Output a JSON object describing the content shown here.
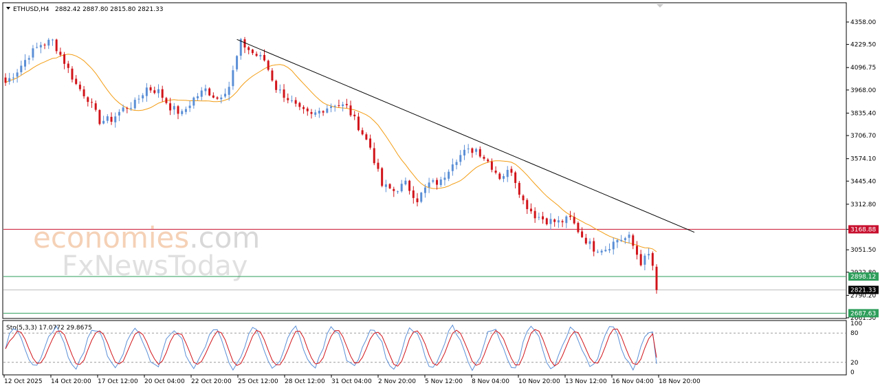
{
  "chart_data": {
    "type": "candlestick",
    "symbol_header": "ETHUSD,H4",
    "ohlc_header": "2882.42 2887.80 2815.80 2821.33",
    "watermark": {
      "line1_left": "economies",
      "line1_right": ".com",
      "line2": "FxNewsToday"
    },
    "y_axis": {
      "min": 2661.5,
      "max": 4358.0,
      "ticks": [
        "4358.00",
        "4229.50",
        "4096.75",
        "3968.00",
        "3835.40",
        "3706.70",
        "3574.10",
        "3445.40",
        "3312.80",
        "3168.88",
        "3051.50",
        "2922.80",
        "2790.20",
        "2661.50"
      ]
    },
    "x_axis": {
      "labels": [
        "12 Oct 2025",
        "14 Oct 20:00",
        "17 Oct 12:00",
        "20 Oct 04:00",
        "22 Oct 20:00",
        "25 Oct 12:00",
        "28 Oct 12:00",
        "31 Oct 04:00",
        "2 Nov 20:00",
        "5 Nov 12:00",
        "8 Nov 04:00",
        "10 Nov 20:00",
        "13 Nov 12:00",
        "16 Nov 04:00",
        "18 Nov 20:00"
      ]
    },
    "levels": [
      {
        "value": 3168.88,
        "label": "3168.88",
        "color": "#c8102e"
      },
      {
        "value": 2898.12,
        "label": "2898.12",
        "color": "#2e9e5b"
      },
      {
        "value": 2821.33,
        "label": "2821.33",
        "color": "#000000"
      },
      {
        "value": 2687.63,
        "label": "2687.63",
        "color": "#2e9e5b"
      }
    ],
    "trendline": {
      "from": {
        "x_index": 59,
        "value": 4258
      },
      "to": {
        "x_index": 166,
        "value": 3152
      }
    },
    "moving_average_color": "#f39c12",
    "bull_color": "#5b8fd6",
    "bear_color": "#d1141a",
    "anchors": [
      [
        0,
        4010
      ],
      [
        3,
        4080
      ],
      [
        6,
        4170
      ],
      [
        9,
        4230
      ],
      [
        12,
        4250
      ],
      [
        15,
        4130
      ],
      [
        18,
        4000
      ],
      [
        21,
        3920
      ],
      [
        24,
        3790
      ],
      [
        27,
        3800
      ],
      [
        30,
        3860
      ],
      [
        33,
        3890
      ],
      [
        36,
        3980
      ],
      [
        39,
        3960
      ],
      [
        42,
        3870
      ],
      [
        45,
        3830
      ],
      [
        48,
        3920
      ],
      [
        51,
        3970
      ],
      [
        54,
        3920
      ],
      [
        57,
        3990
      ],
      [
        60,
        4240
      ],
      [
        63,
        4180
      ],
      [
        66,
        4140
      ],
      [
        69,
        3980
      ],
      [
        72,
        3920
      ],
      [
        75,
        3850
      ],
      [
        78,
        3820
      ],
      [
        81,
        3860
      ],
      [
        84,
        3890
      ],
      [
        87,
        3870
      ],
      [
        90,
        3760
      ],
      [
        93,
        3640
      ],
      [
        96,
        3420
      ],
      [
        99,
        3390
      ],
      [
        102,
        3430
      ],
      [
        105,
        3340
      ],
      [
        108,
        3430
      ],
      [
        111,
        3440
      ],
      [
        114,
        3560
      ],
      [
        117,
        3610
      ],
      [
        120,
        3630
      ],
      [
        123,
        3560
      ],
      [
        126,
        3470
      ],
      [
        129,
        3510
      ],
      [
        132,
        3330
      ],
      [
        135,
        3250
      ],
      [
        138,
        3220
      ],
      [
        141,
        3210
      ],
      [
        144,
        3230
      ],
      [
        147,
        3130
      ],
      [
        150,
        3060
      ],
      [
        153,
        3060
      ],
      [
        156,
        3110
      ],
      [
        159,
        3120
      ],
      [
        162,
        2980
      ],
      [
        164,
        3020
      ],
      [
        165,
        2960
      ],
      [
        166,
        2821
      ]
    ],
    "stochastic": {
      "label": "Sto(5,3,3) 17.0772 29.8675",
      "k_value": 17.0772,
      "d_value": 29.8675,
      "levels": [
        80,
        20
      ],
      "ticks": [
        "100",
        "80",
        "20",
        "0"
      ],
      "k_color": "#5b8fd6",
      "d_color": "#d1141a"
    }
  }
}
